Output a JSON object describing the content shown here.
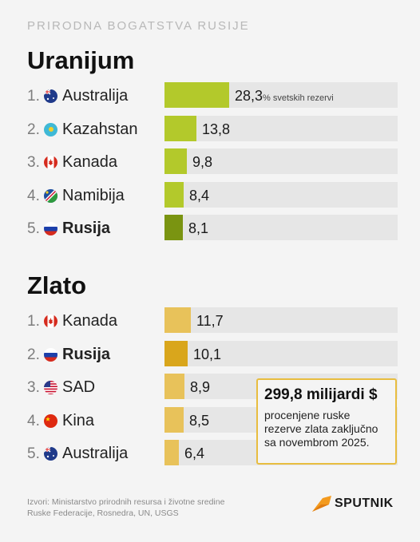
{
  "kicker": "PRIRODNA BOGATSTVA RUSIJE",
  "colors": {
    "uranium_bar": "#b3c92b",
    "uranium_highlight": "#7a9411",
    "gold_bar": "#e8c25a",
    "gold_highlight": "#d9a61c",
    "track": "#e6e6e6"
  },
  "uranium": {
    "title": "Uranijum",
    "unit_label": "% svetskih rezervi",
    "rows": [
      {
        "rank": "1.",
        "country": "Australija",
        "value": "28,3",
        "flag": "australia-flag-icon"
      },
      {
        "rank": "2.",
        "country": "Kazahstan",
        "value": "13,8",
        "flag": "kazakhstan-flag-icon"
      },
      {
        "rank": "3.",
        "country": "Kanada",
        "value": "9,8",
        "flag": "canada-flag-icon"
      },
      {
        "rank": "4.",
        "country": "Namibija",
        "value": "8,4",
        "flag": "namibia-flag-icon"
      },
      {
        "rank": "5.",
        "country": "Rusija",
        "value": "8,1",
        "flag": "russia-flag-icon",
        "highlight": true
      }
    ]
  },
  "gold": {
    "title": "Zlato",
    "rows": [
      {
        "rank": "1.",
        "country": "Kanada",
        "value": "11,7",
        "flag": "canada-flag-icon"
      },
      {
        "rank": "2.",
        "country": "Rusija",
        "value": "10,1",
        "flag": "russia-flag-icon",
        "highlight": true
      },
      {
        "rank": "3.",
        "country": "SAD",
        "value": "8,9",
        "flag": "usa-flag-icon"
      },
      {
        "rank": "4.",
        "country": "Kina",
        "value": "8,5",
        "flag": "china-flag-icon"
      },
      {
        "rank": "5.",
        "country": "Australija",
        "value": "6,4",
        "flag": "australia-flag-icon"
      }
    ]
  },
  "callout": {
    "headline": "299,8 milijardi $",
    "text": "procenjene ruske rezerve zlata zaključno sa novembrom 2025."
  },
  "source": "Izvori: Ministarstvo prirodnih resursa i životne sredine Ruske Federacije, Rosnedra, UN, USGS",
  "logo": "SPUTNIK",
  "chart_data": [
    {
      "type": "bar",
      "title": "Uranijum",
      "categories": [
        "Australija",
        "Kazahstan",
        "Kanada",
        "Namibija",
        "Rusija"
      ],
      "values": [
        28.3,
        13.8,
        9.8,
        8.4,
        8.1
      ],
      "unit": "% svetskih rezervi"
    },
    {
      "type": "bar",
      "title": "Zlato",
      "categories": [
        "Kanada",
        "Rusija",
        "SAD",
        "Kina",
        "Australija"
      ],
      "values": [
        11.7,
        10.1,
        8.9,
        8.5,
        6.4
      ]
    }
  ]
}
